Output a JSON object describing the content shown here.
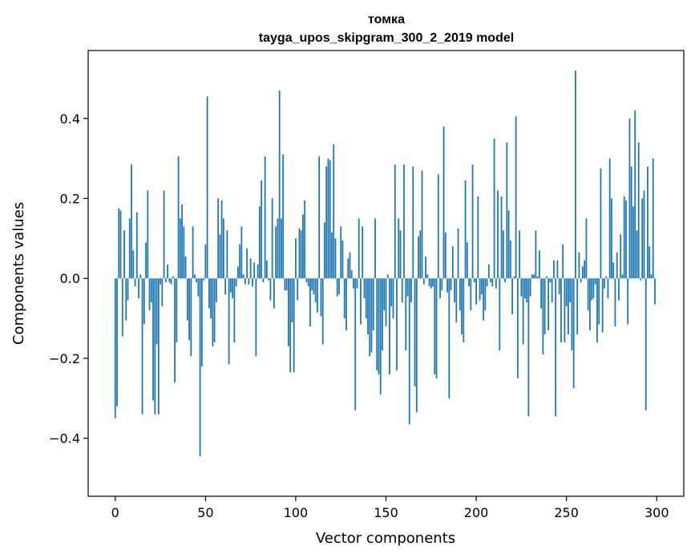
{
  "chart_data": {
    "type": "bar",
    "title": "томка",
    "subtitle": "tayga_upos_skipgram_300_2_2019 model",
    "xlabel": "Vector components",
    "ylabel": "Components values",
    "xlim": [
      -15,
      315
    ],
    "ylim": [
      -0.545,
      0.57
    ],
    "xticks": [
      0,
      50,
      100,
      150,
      200,
      250,
      300
    ],
    "yticks": [
      -0.4,
      -0.2,
      0.0,
      0.2,
      0.4
    ],
    "ytick_labels": [
      "−0.4",
      "−0.2",
      "0.0",
      "0.2",
      "0.4"
    ],
    "grid": false,
    "bar_color": "#1f77b4",
    "values": [
      -0.35,
      -0.32,
      0.175,
      0.17,
      -0.145,
      0.12,
      -0.105,
      -0.055,
      0.15,
      0.285,
      0.07,
      -0.02,
      0.165,
      -0.05,
      0.01,
      -0.34,
      -0.115,
      0.09,
      0.22,
      -0.08,
      -0.06,
      -0.305,
      -0.34,
      -0.165,
      -0.34,
      -0.015,
      -0.07,
      0.22,
      -0.01,
      0.035,
      -0.01,
      -0.015,
      0.005,
      -0.26,
      -0.16,
      0.305,
      0.15,
      0.185,
      0.13,
      0.055,
      -0.105,
      -0.155,
      -0.195,
      0.13,
      0.01,
      -0.01,
      -0.045,
      -0.445,
      -0.22,
      -0.005,
      0.085,
      0.455,
      -0.075,
      -0.1,
      -0.17,
      -0.16,
      -0.06,
      0.2,
      0.11,
      0.195,
      0.15,
      -0.04,
      0.12,
      -0.215,
      -0.035,
      -0.05,
      -0.16,
      -0.02,
      0.03,
      0.085,
      0.13,
      0.01,
      -0.015,
      0.075,
      -0.015,
      0.05,
      -0.02,
      0.04,
      -0.195,
      0.035,
      0.18,
      0.245,
      -0.01,
      0.305,
      0.045,
      -0.005,
      -0.055,
      0.2,
      -0.075,
      0.13,
      0.15,
      0.47,
      0.15,
      0.31,
      -0.03,
      -0.03,
      -0.17,
      -0.235,
      -0.11,
      -0.235,
      0.1,
      -0.055,
      0.125,
      0.12,
      0.16,
      0.195,
      -0.01,
      -0.02,
      -0.12,
      -0.03,
      -0.04,
      -0.06,
      -0.085,
      0.305,
      -0.095,
      -0.165,
      0.14,
      0.28,
      0.3,
      0.295,
      0.115,
      0.335,
      0.1,
      -0.045,
      -0.04,
      0.13,
      0.095,
      -0.1,
      -0.13,
      0.05,
      0.065,
      0.02,
      -0.025,
      -0.33,
      -0.025,
      0.15,
      -0.115,
      0.13,
      -0.05,
      -0.1,
      -0.14,
      -0.195,
      -0.185,
      -0.13,
      0.15,
      -0.23,
      -0.24,
      -0.29,
      -0.18,
      -0.08,
      -0.12,
      0.01,
      -0.24,
      -0.07,
      -0.1,
      0.285,
      -0.23,
      0.15,
      0.12,
      -0.06,
      0.285,
      -0.18,
      -0.045,
      -0.365,
      -0.06,
      0.28,
      -0.27,
      -0.335,
      0.105,
      0.12,
      0.27,
      -0.015,
      0.055,
      0.01,
      -0.02,
      -0.025,
      -0.02,
      -0.24,
      -0.25,
      0.26,
      -0.05,
      -0.03,
      0.38,
      0.115,
      -0.035,
      -0.3,
      -0.03,
      0.08,
      -0.06,
      -0.11,
      0.125,
      -0.08,
      -0.14,
      -0.16,
      0.245,
      0.09,
      -0.02,
      -0.08,
      0.285,
      -0.01,
      -0.065,
      0.205,
      -0.055,
      -0.04,
      -0.105,
      -0.08,
      -0.02,
      0.035,
      -0.01,
      -0.02,
      0.35,
      -0.025,
      0.22,
      -0.18,
      0.205,
      0.12,
      -0.01,
      0.34,
      0.17,
      0.095,
      -0.09,
      0.005,
      0.405,
      -0.25,
      0.12,
      -0.045,
      -0.165,
      -0.05,
      -0.06,
      -0.345,
      -0.045,
      0.01,
      0.01,
      0.12,
      0.005,
      0.07,
      -0.075,
      -0.19,
      -0.14,
      0.005,
      -0.13,
      -0.01,
      -0.06,
      0.045,
      -0.345,
      0.045,
      -0.04,
      -0.16,
      0.085,
      -0.16,
      -0.07,
      -0.14,
      -0.06,
      -0.18,
      -0.275,
      0.52,
      -0.14,
      0.065,
      -0.01,
      0.03,
      0.045,
      0.15,
      -0.08,
      -0.13,
      -0.055,
      -0.05,
      -0.015,
      -0.16,
      -0.115,
      0.275,
      -0.135,
      -0.025,
      0.005,
      -0.05,
      0.3,
      0.2,
      0.04,
      -0.12,
      0.065,
      -0.055,
      0.11,
      0.01,
      0.205,
      0.195,
      -0.115,
      0.4,
      0.28,
      0.18,
      0.42,
      0.12,
      0.34,
      -0.005,
      0.2,
      0.22,
      -0.33,
      0.28,
      0.08,
      0.01,
      0.3,
      -0.065
    ]
  }
}
